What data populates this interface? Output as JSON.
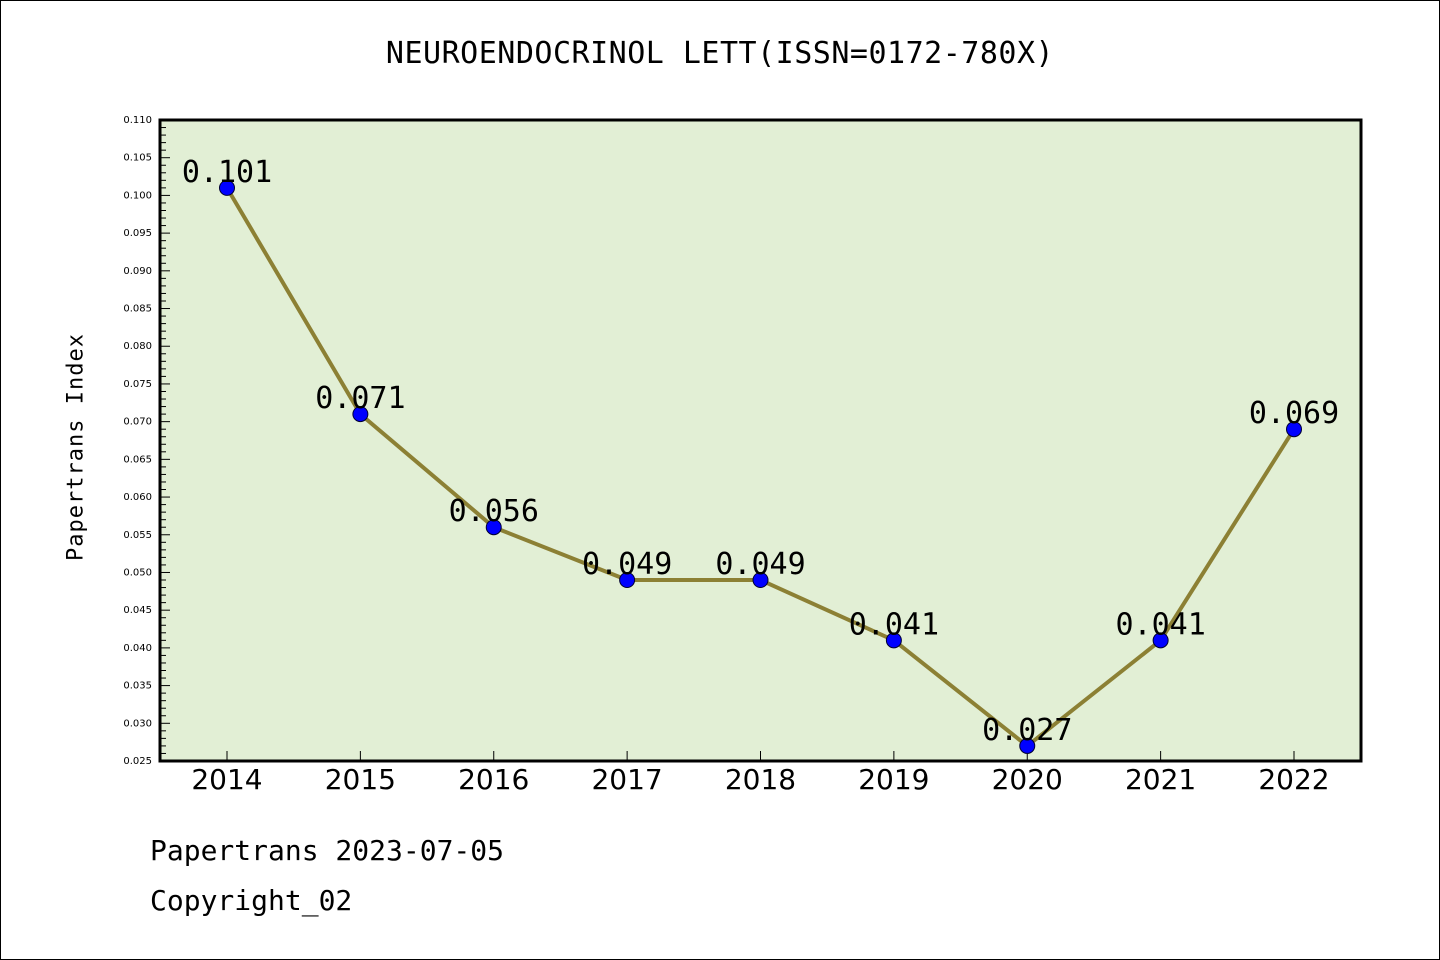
{
  "chart_data": {
    "type": "line",
    "title": "NEUROENDOCRINOL LETT(ISSN=0172-780X)",
    "xlabel": "",
    "ylabel": "Papertrans Index",
    "categories": [
      "2014",
      "2015",
      "2016",
      "2017",
      "2018",
      "2019",
      "2020",
      "2021",
      "2022"
    ],
    "values": [
      0.101,
      0.071,
      0.056,
      0.049,
      0.049,
      0.041,
      0.027,
      0.041,
      0.069
    ],
    "data_labels": [
      "0.101",
      "0.071",
      "0.056",
      "0.049",
      "0.049",
      "0.041",
      "0.027",
      "0.041",
      "0.069"
    ],
    "ylim": [
      0.025,
      0.11
    ],
    "yticks": [
      "0.025",
      "0.030",
      "0.035",
      "0.040",
      "0.045",
      "0.050",
      "0.055",
      "0.060",
      "0.065",
      "0.070",
      "0.075",
      "0.080",
      "0.085",
      "0.090",
      "0.095",
      "0.100",
      "0.105",
      "0.110"
    ],
    "grid": false,
    "colors": {
      "plot_background": "#e2efd5",
      "line": "#8c8034",
      "marker": "#0000ff"
    }
  },
  "footer": {
    "line1": "Papertrans 2023-07-05",
    "line2": "Copyright_02"
  }
}
